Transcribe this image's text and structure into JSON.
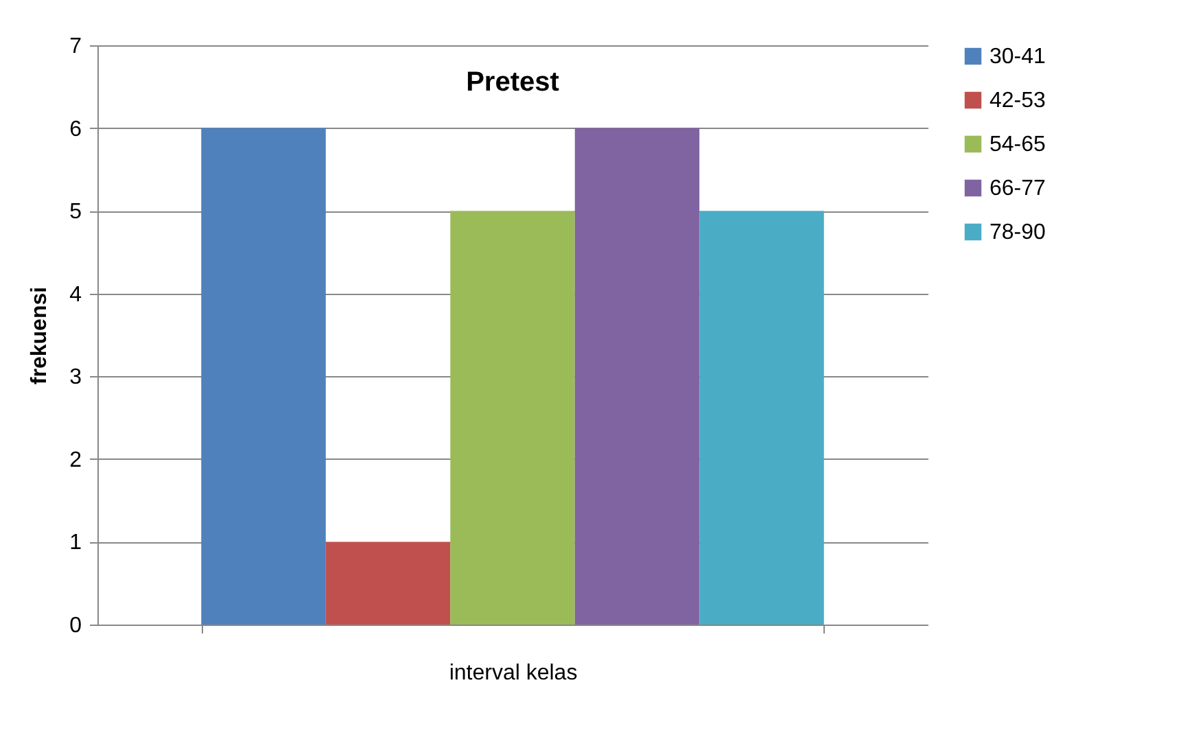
{
  "chart_data": {
    "type": "bar",
    "title": "Pretest",
    "xlabel": "interval kelas",
    "ylabel": "frekuensi",
    "categories": [
      null
    ],
    "series": [
      {
        "name": "30-41",
        "color": "#4f81bd",
        "values": [
          6
        ]
      },
      {
        "name": "42-53",
        "color": "#c0504d",
        "values": [
          1
        ]
      },
      {
        "name": "54-65",
        "color": "#9bbb59",
        "values": [
          5
        ]
      },
      {
        "name": "66-77",
        "color": "#8064a2",
        "values": [
          6
        ]
      },
      {
        "name": "78-90",
        "color": "#4bacc6",
        "values": [
          5
        ]
      }
    ],
    "ylim": [
      0,
      7
    ],
    "yticks": [
      0,
      1,
      2,
      3,
      4,
      5,
      6,
      7
    ],
    "grid": "y",
    "legend": "right"
  }
}
